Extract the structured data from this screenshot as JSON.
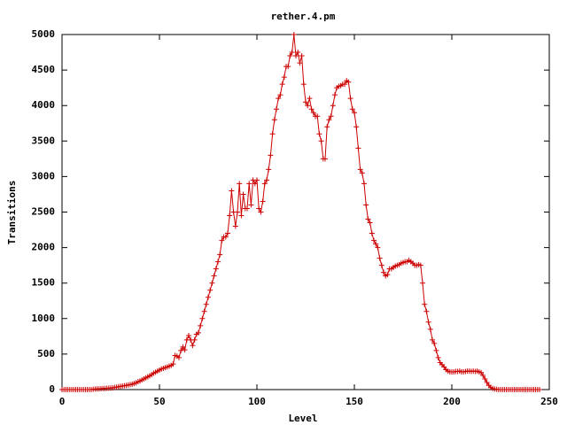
{
  "chart_data": {
    "type": "line",
    "title": "rether.4.pm",
    "xlabel": "Level",
    "ylabel": "Transitions",
    "x": [
      0,
      1,
      2,
      3,
      4,
      5,
      6,
      7,
      8,
      9,
      10,
      11,
      12,
      13,
      14,
      15,
      16,
      17,
      18,
      19,
      20,
      21,
      22,
      23,
      24,
      25,
      26,
      27,
      28,
      29,
      30,
      31,
      32,
      33,
      34,
      35,
      36,
      37,
      38,
      39,
      40,
      41,
      42,
      43,
      44,
      45,
      46,
      47,
      48,
      49,
      50,
      51,
      52,
      53,
      54,
      55,
      56,
      57,
      58,
      59,
      60,
      61,
      62,
      63,
      64,
      65,
      66,
      67,
      68,
      69,
      70,
      71,
      72,
      73,
      74,
      75,
      76,
      77,
      78,
      79,
      80,
      81,
      82,
      83,
      84,
      85,
      86,
      87,
      88,
      89,
      90,
      91,
      92,
      93,
      94,
      95,
      96,
      97,
      98,
      99,
      100,
      101,
      102,
      103,
      104,
      105,
      106,
      107,
      108,
      109,
      110,
      111,
      112,
      113,
      114,
      115,
      116,
      117,
      118,
      119,
      120,
      121,
      122,
      123,
      124,
      125,
      126,
      127,
      128,
      129,
      130,
      131,
      132,
      133,
      134,
      135,
      136,
      137,
      138,
      139,
      140,
      141,
      142,
      143,
      144,
      145,
      146,
      147,
      148,
      149,
      150,
      151,
      152,
      153,
      154,
      155,
      156,
      157,
      158,
      159,
      160,
      161,
      162,
      163,
      164,
      165,
      166,
      167,
      168,
      169,
      170,
      171,
      172,
      173,
      174,
      175,
      176,
      177,
      178,
      179,
      180,
      181,
      182,
      183,
      184,
      185,
      186,
      187,
      188,
      189,
      190,
      191,
      192,
      193,
      194,
      195,
      196,
      197,
      198,
      199,
      200,
      201,
      202,
      203,
      204,
      205,
      206,
      207,
      208,
      209,
      210,
      211,
      212,
      213,
      214,
      215,
      216,
      217,
      218,
      219,
      220,
      221,
      222,
      223,
      224,
      225,
      226,
      227,
      228,
      229,
      230,
      231,
      232,
      233,
      234,
      235,
      236,
      237,
      238,
      239,
      240,
      241,
      242,
      243,
      244,
      245
    ],
    "series": [
      {
        "color": "#cc0000",
        "values": [
          0,
          0,
          0,
          0,
          0,
          0,
          0,
          0,
          0,
          0,
          0,
          0,
          0,
          0,
          0,
          0,
          5,
          8,
          10,
          10,
          12,
          15,
          15,
          18,
          20,
          22,
          25,
          30,
          35,
          40,
          45,
          50,
          55,
          60,
          65,
          70,
          75,
          85,
          95,
          110,
          120,
          135,
          150,
          165,
          180,
          195,
          210,
          230,
          245,
          260,
          275,
          290,
          300,
          310,
          320,
          330,
          340,
          360,
          480,
          470,
          450,
          550,
          600,
          560,
          700,
          760,
          700,
          620,
          700,
          780,
          800,
          900,
          1000,
          1100,
          1200,
          1300,
          1400,
          1500,
          1600,
          1700,
          1800,
          1900,
          2100,
          2150,
          2150,
          2200,
          2450,
          2800,
          2500,
          2300,
          2500,
          2900,
          2450,
          2750,
          2550,
          2550,
          2900,
          2600,
          2950,
          2900,
          2950,
          2550,
          2500,
          2650,
          2900,
          2950,
          3100,
          3300,
          3600,
          3800,
          3950,
          4100,
          4150,
          4300,
          4400,
          4550,
          4550,
          4700,
          4750,
          5000,
          4700,
          4750,
          4600,
          4700,
          4300,
          4050,
          4000,
          4100,
          3950,
          3900,
          3850,
          3850,
          3600,
          3500,
          3250,
          3250,
          3700,
          3800,
          3850,
          4000,
          4150,
          4250,
          4270,
          4280,
          4300,
          4300,
          4350,
          4330,
          4100,
          3950,
          3900,
          3700,
          3400,
          3100,
          3050,
          2900,
          2600,
          2400,
          2350,
          2200,
          2100,
          2050,
          2000,
          1850,
          1750,
          1650,
          1600,
          1620,
          1700,
          1700,
          1720,
          1740,
          1750,
          1760,
          1780,
          1790,
          1800,
          1800,
          1820,
          1800,
          1780,
          1750,
          1750,
          1760,
          1750,
          1500,
          1200,
          1100,
          950,
          850,
          700,
          650,
          550,
          450,
          380,
          350,
          320,
          280,
          260,
          250,
          250,
          250,
          255,
          255,
          260,
          250,
          250,
          255,
          260,
          260,
          255,
          260,
          255,
          260,
          250,
          240,
          200,
          150,
          100,
          60,
          30,
          15,
          8,
          5,
          0,
          0,
          0,
          0,
          0,
          0,
          0,
          0,
          0,
          0,
          0,
          0,
          0,
          0,
          0,
          0,
          0,
          0,
          0,
          0,
          0,
          0
        ]
      }
    ],
    "xlim": [
      0,
      250
    ],
    "ylim": [
      0,
      5000
    ],
    "xticks": [
      0,
      50,
      100,
      150,
      200,
      250
    ],
    "yticks": [
      0,
      500,
      1000,
      1500,
      2000,
      2500,
      3000,
      3500,
      4000,
      4500,
      5000
    ]
  }
}
